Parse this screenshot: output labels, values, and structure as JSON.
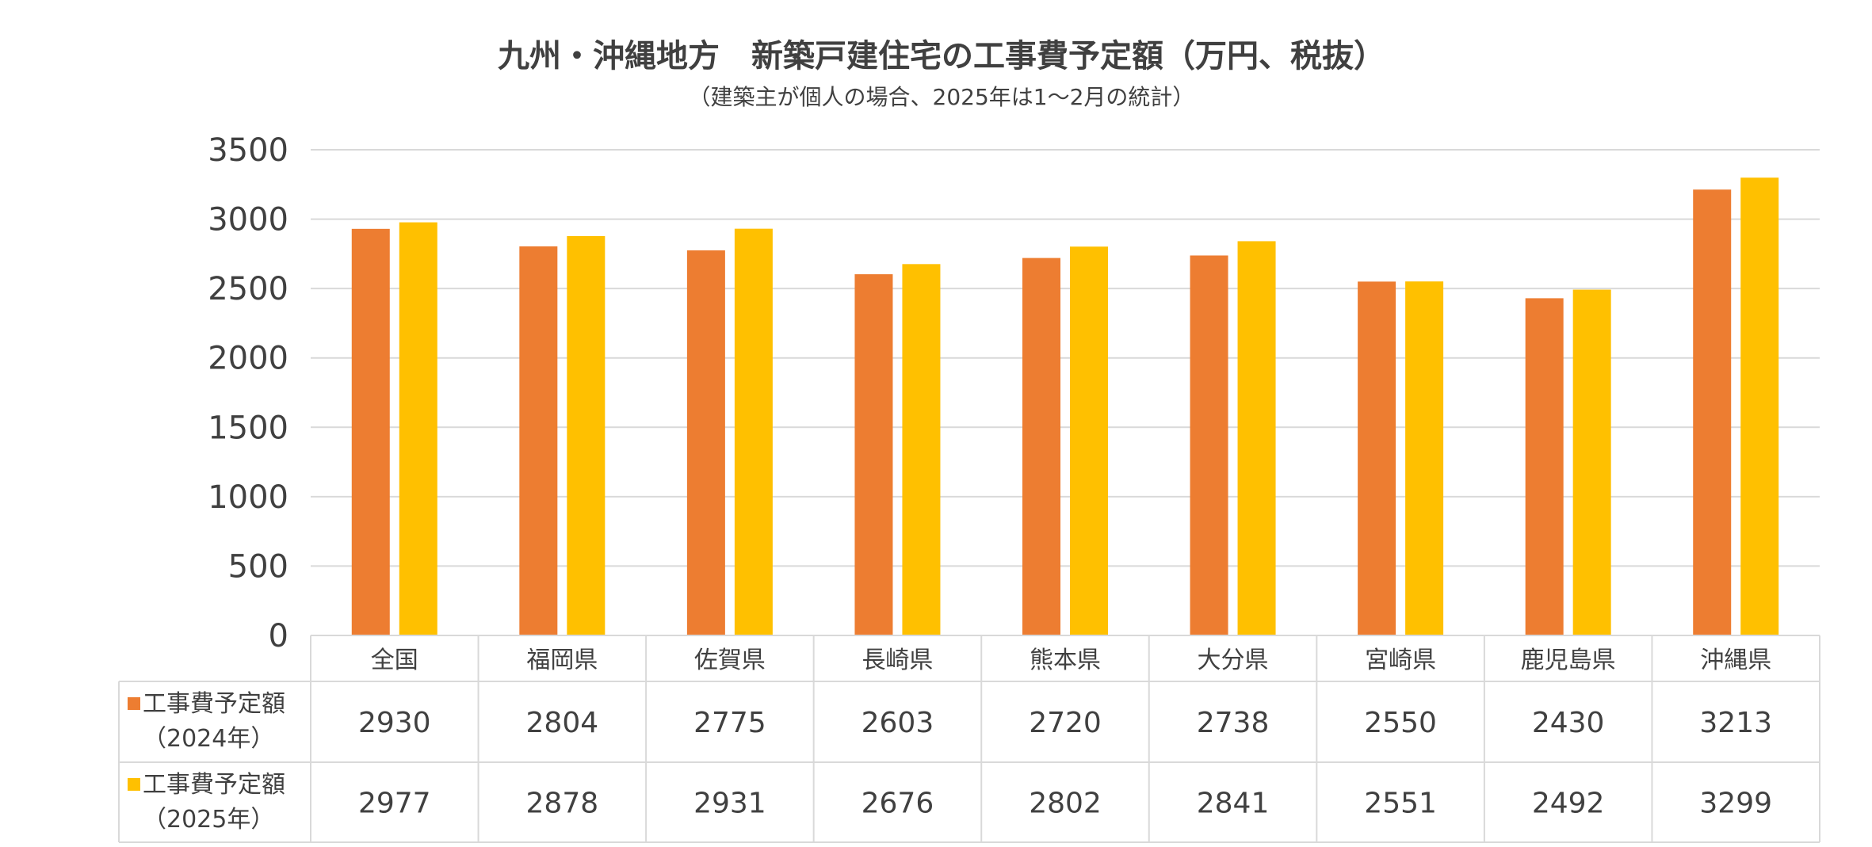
{
  "chart_data": {
    "type": "bar",
    "title": "九州・沖縄地方　新築戸建住宅の工事費予定額（万円、税抜）",
    "subtitle": "（建築主が個人の場合、2025年は1～2月の統計）",
    "categories": [
      "全国",
      "福岡県",
      "佐賀県",
      "長崎県",
      "熊本県",
      "大分県",
      "宮崎県",
      "鹿児島県",
      "沖縄県"
    ],
    "series": [
      {
        "name": "工事費予定額",
        "name_sub": "（2024年）",
        "color": "#ED7D31",
        "values": [
          2930,
          2804,
          2775,
          2603,
          2720,
          2738,
          2550,
          2430,
          3213
        ]
      },
      {
        "name": "工事費予定額",
        "name_sub": "（2025年）",
        "color": "#FFC000",
        "values": [
          2977,
          2878,
          2931,
          2676,
          2802,
          2841,
          2551,
          2492,
          3299
        ]
      }
    ],
    "ylim": [
      0,
      3500
    ],
    "yticks": [
      0,
      500,
      1000,
      1500,
      2000,
      2500,
      3000,
      3500
    ],
    "grid": true,
    "legend": "data-table"
  }
}
